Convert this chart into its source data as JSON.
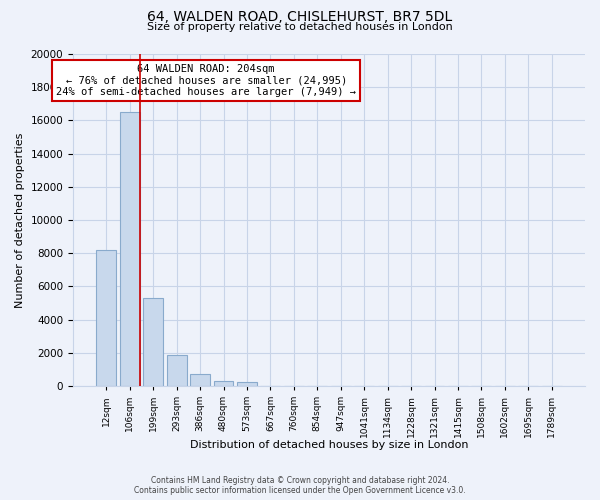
{
  "title": "64, WALDEN ROAD, CHISLEHURST, BR7 5DL",
  "subtitle": "Size of property relative to detached houses in London",
  "xlabel": "Distribution of detached houses by size in London",
  "ylabel": "Number of detached properties",
  "bar_values": [
    8200,
    16500,
    5300,
    1850,
    750,
    280,
    220,
    0,
    0,
    0,
    0,
    0,
    0,
    0,
    0,
    0,
    0,
    0,
    0,
    0
  ],
  "bar_labels": [
    "12sqm",
    "106sqm",
    "199sqm",
    "293sqm",
    "386sqm",
    "480sqm",
    "573sqm",
    "667sqm",
    "760sqm",
    "854sqm",
    "947sqm",
    "1041sqm",
    "1134sqm",
    "1228sqm",
    "1321sqm",
    "1415sqm",
    "1508sqm",
    "1602sqm",
    "1695sqm",
    "1789sqm"
  ],
  "bar_color": "#c8d8ec",
  "bar_edge_color": "#89aacc",
  "property_line_color": "#cc0000",
  "annotation_title": "64 WALDEN ROAD: 204sqm",
  "annotation_line1": "← 76% of detached houses are smaller (24,995)",
  "annotation_line2": "24% of semi-detached houses are larger (7,949) →",
  "annotation_box_color": "#ffffff",
  "annotation_box_edge": "#cc0000",
  "ylim": [
    0,
    20000
  ],
  "yticks": [
    0,
    2000,
    4000,
    6000,
    8000,
    10000,
    12000,
    14000,
    16000,
    18000,
    20000
  ],
  "footer_line1": "Contains HM Land Registry data © Crown copyright and database right 2024.",
  "footer_line2": "Contains public sector information licensed under the Open Government Licence v3.0.",
  "grid_color": "#c8d4e8",
  "background_color": "#eef2fa"
}
